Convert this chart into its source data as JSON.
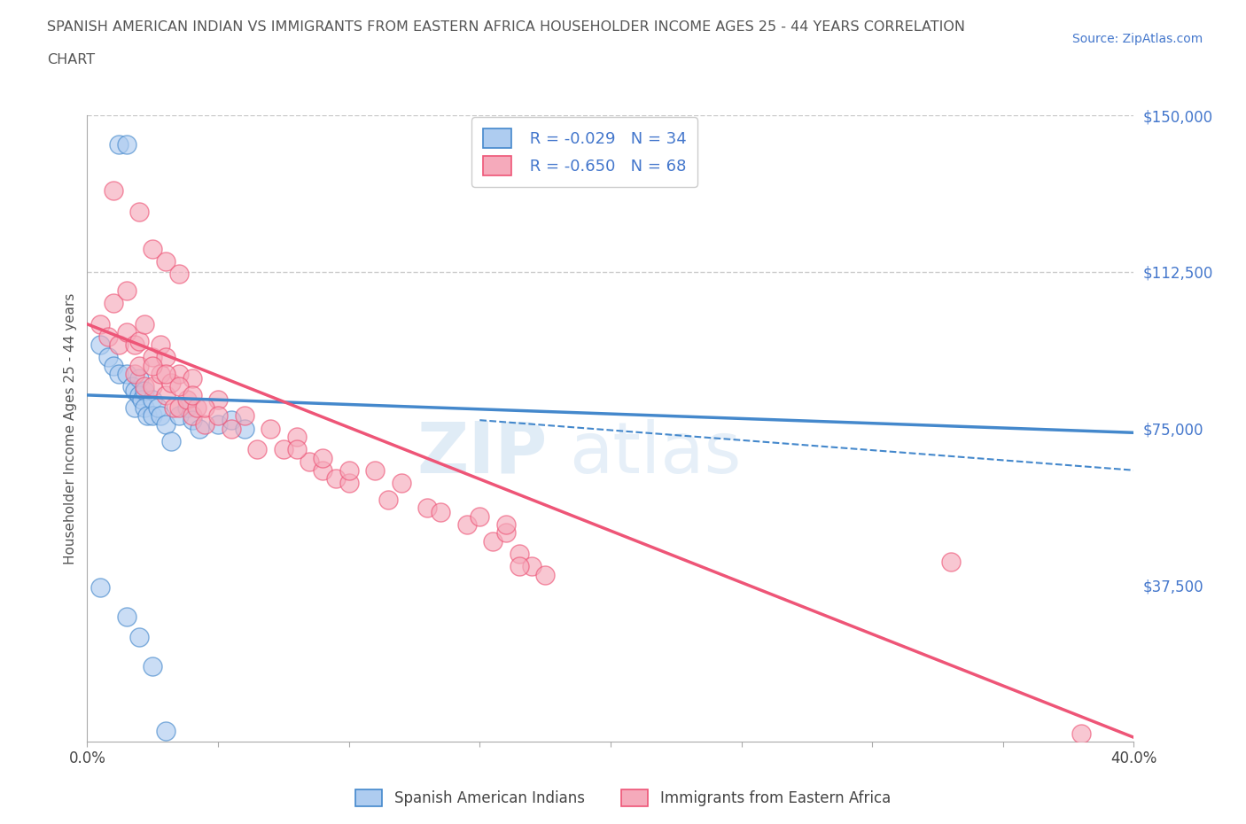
{
  "title_line1": "SPANISH AMERICAN INDIAN VS IMMIGRANTS FROM EASTERN AFRICA HOUSEHOLDER INCOME AGES 25 - 44 YEARS CORRELATION",
  "title_line2": "CHART",
  "source_text": "Source: ZipAtlas.com",
  "ylabel": "Householder Income Ages 25 - 44 years",
  "watermark_left": "ZIP",
  "watermark_right": "atlas",
  "legend_r1": "R = -0.029",
  "legend_n1": "N = 34",
  "legend_r2": "R = -0.650",
  "legend_n2": "N = 68",
  "label1": "Spanish American Indians",
  "label2": "Immigrants from Eastern Africa",
  "color1": "#aeccf0",
  "color2": "#f5aabb",
  "line_color1": "#4488cc",
  "line_color2": "#ee5577",
  "bg_color": "#ffffff",
  "grid_color": "#cccccc",
  "ytick_color": "#4477cc",
  "title_color": "#555555",
  "xlim": [
    0.0,
    0.4
  ],
  "ylim": [
    0,
    150000
  ],
  "yticks": [
    0,
    37500,
    75000,
    112500,
    150000
  ],
  "ytick_labels": [
    "",
    "$37,500",
    "$75,000",
    "$112,500",
    "$150,000"
  ],
  "xticks": [
    0.0,
    0.05,
    0.1,
    0.15,
    0.2,
    0.25,
    0.3,
    0.35,
    0.4
  ],
  "xtick_labels": [
    "0.0%",
    "",
    "",
    "",
    "",
    "",
    "",
    "",
    "40.0%"
  ],
  "blue_scatter_x": [
    0.012,
    0.015,
    0.005,
    0.008,
    0.01,
    0.012,
    0.015,
    0.017,
    0.018,
    0.018,
    0.02,
    0.02,
    0.021,
    0.022,
    0.022,
    0.023,
    0.025,
    0.025,
    0.027,
    0.028,
    0.03,
    0.032,
    0.035,
    0.038,
    0.04,
    0.043,
    0.05,
    0.055,
    0.06,
    0.005,
    0.015,
    0.02,
    0.025,
    0.03
  ],
  "blue_scatter_y": [
    143000,
    143000,
    95000,
    92000,
    90000,
    88000,
    88000,
    85000,
    84000,
    80000,
    87000,
    83000,
    82000,
    84000,
    80000,
    78000,
    82000,
    78000,
    80000,
    78000,
    76000,
    72000,
    78000,
    80000,
    77000,
    75000,
    76000,
    77000,
    75000,
    37000,
    30000,
    25000,
    18000,
    2500
  ],
  "pink_scatter_x": [
    0.005,
    0.008,
    0.01,
    0.012,
    0.015,
    0.015,
    0.018,
    0.018,
    0.02,
    0.02,
    0.022,
    0.022,
    0.025,
    0.025,
    0.028,
    0.028,
    0.03,
    0.03,
    0.032,
    0.033,
    0.035,
    0.035,
    0.038,
    0.04,
    0.04,
    0.042,
    0.045,
    0.05,
    0.055,
    0.06,
    0.065,
    0.07,
    0.075,
    0.08,
    0.085,
    0.09,
    0.095,
    0.1,
    0.11,
    0.115,
    0.12,
    0.13,
    0.135,
    0.145,
    0.15,
    0.155,
    0.16,
    0.165,
    0.17,
    0.175,
    0.01,
    0.02,
    0.025,
    0.03,
    0.035,
    0.025,
    0.03,
    0.035,
    0.04,
    0.045,
    0.05,
    0.08,
    0.09,
    0.1,
    0.16,
    0.33,
    0.165,
    0.38
  ],
  "pink_scatter_y": [
    100000,
    97000,
    105000,
    95000,
    108000,
    98000,
    95000,
    88000,
    96000,
    90000,
    100000,
    85000,
    92000,
    85000,
    95000,
    88000,
    92000,
    83000,
    86000,
    80000,
    88000,
    80000,
    82000,
    87000,
    78000,
    80000,
    76000,
    82000,
    75000,
    78000,
    70000,
    75000,
    70000,
    73000,
    67000,
    65000,
    63000,
    62000,
    65000,
    58000,
    62000,
    56000,
    55000,
    52000,
    54000,
    48000,
    50000,
    45000,
    42000,
    40000,
    132000,
    127000,
    118000,
    115000,
    112000,
    90000,
    88000,
    85000,
    83000,
    80000,
    78000,
    70000,
    68000,
    65000,
    52000,
    43000,
    42000,
    2000
  ],
  "blue_trend_x": [
    0.0,
    0.4
  ],
  "blue_trend_y": [
    83000,
    74000
  ],
  "pink_trend_x": [
    0.0,
    0.4
  ],
  "pink_trend_y": [
    100000,
    1000
  ],
  "dashed_trend_x": [
    0.15,
    0.4
  ],
  "dashed_trend_y": [
    77000,
    65000
  ],
  "hline_y1": 112500,
  "hline_y2": 150000
}
